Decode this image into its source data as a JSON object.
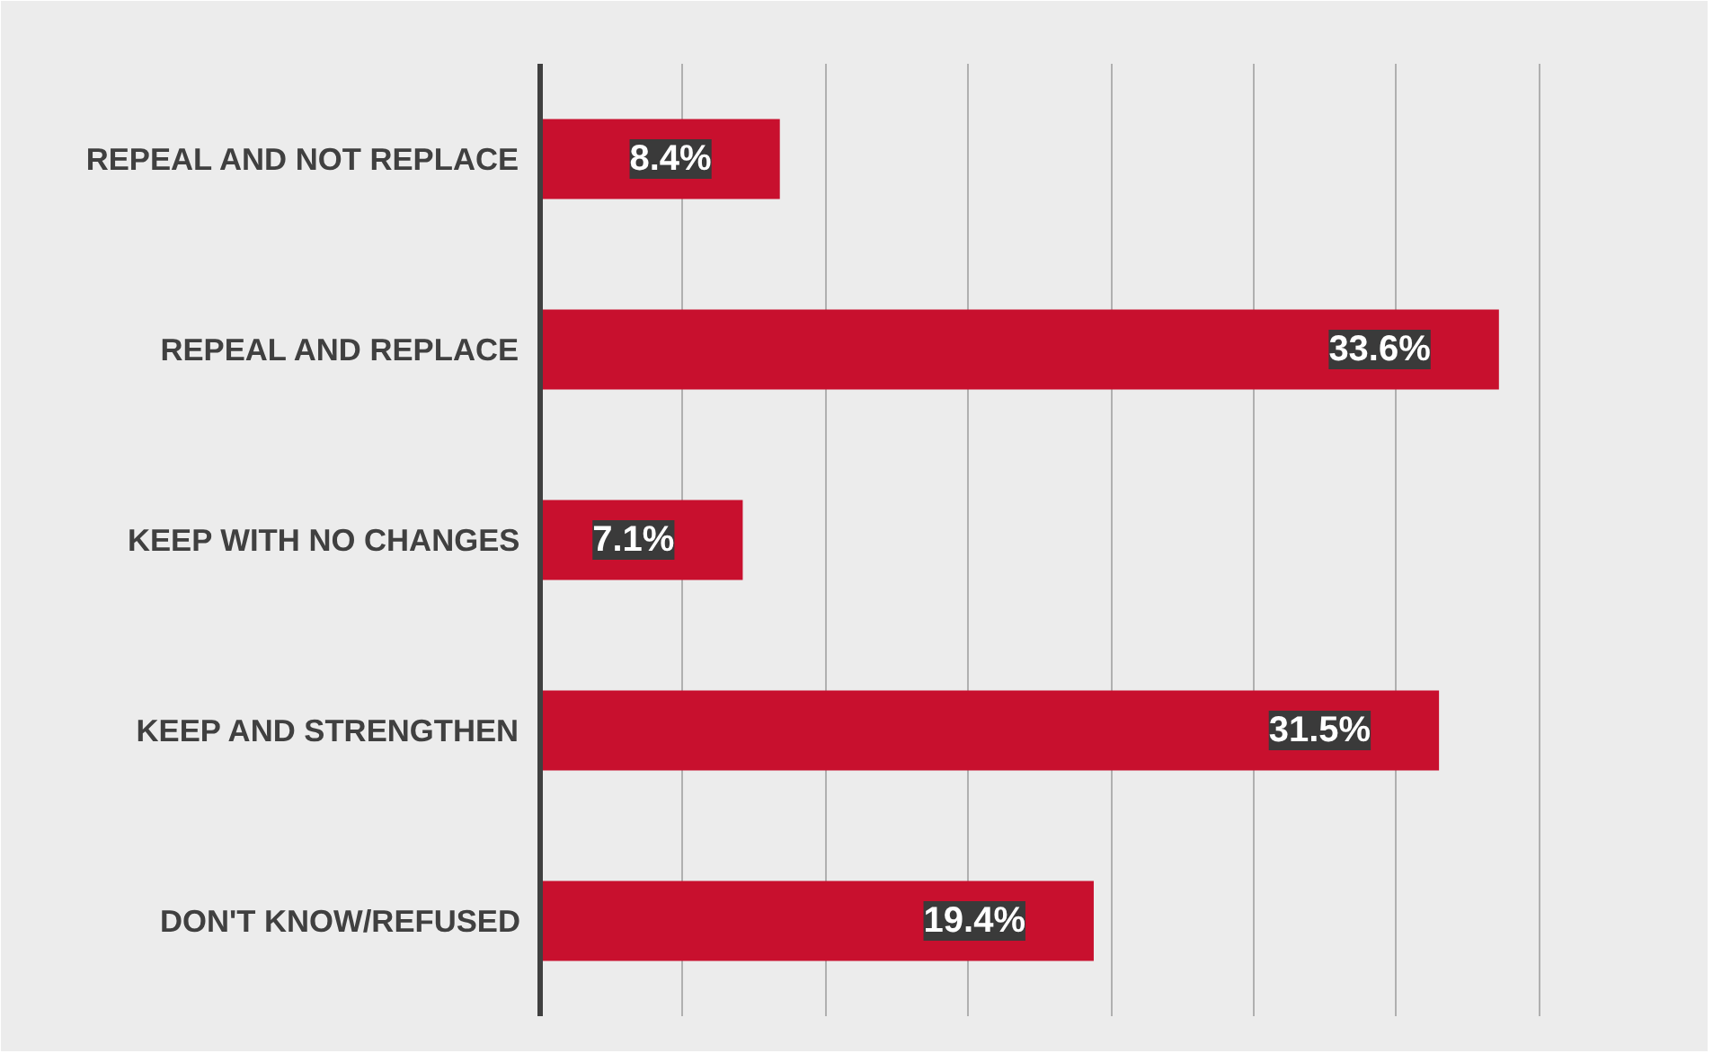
{
  "chart_data": {
    "type": "bar",
    "orientation": "horizontal",
    "categories": [
      "REPEAL AND NOT REPLACE",
      "REPEAL AND REPLACE",
      "KEEP WITH NO CHANGES",
      "KEEP AND STRENGTHEN",
      "DON'T KNOW/REFUSED"
    ],
    "values": [
      8.4,
      33.6,
      7.1,
      31.5,
      19.4
    ],
    "value_labels": [
      "8.4%",
      "33.6%",
      "7.1%",
      "31.5%",
      "19.4%"
    ],
    "color": "#c8102e",
    "xlim": [
      0,
      40
    ],
    "xticks": [
      {
        "value": 0,
        "label": null
      },
      {
        "value": 5,
        "label": null
      },
      {
        "value": 10,
        "label": null
      },
      {
        "value": 15,
        "label": null
      },
      {
        "value": 20,
        "label": null
      },
      {
        "value": 25,
        "label": null
      },
      {
        "value": 30,
        "label": null
      },
      {
        "value": 35,
        "label": null
      },
      {
        "value": 40,
        "label": null
      }
    ],
    "tick_labels": "y",
    "grid": "x"
  }
}
